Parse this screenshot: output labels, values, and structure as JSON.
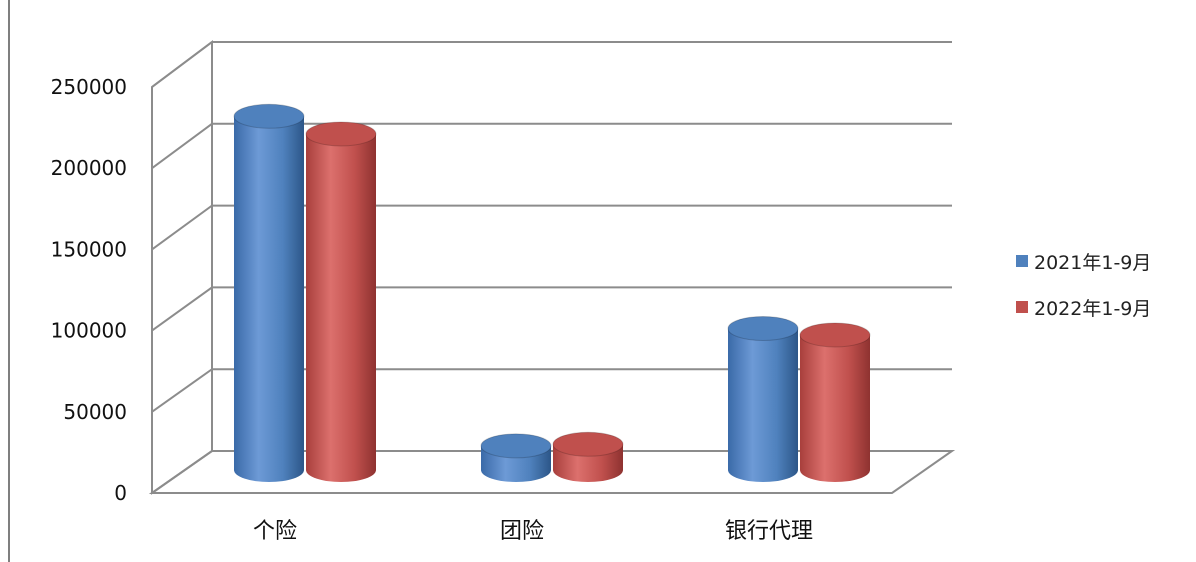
{
  "chart_data": {
    "type": "bar",
    "subtype": "3d-cylinder",
    "title": "",
    "categories": [
      "个险",
      "团险",
      "银行代理"
    ],
    "series": [
      {
        "name": "2021年1-9月",
        "color": "#4f81bd",
        "values": [
          220000,
          15000,
          88000
        ]
      },
      {
        "name": "2022年1-9月",
        "color": "#c0504d",
        "values": [
          209000,
          16000,
          84000
        ]
      }
    ],
    "ylim": [
      0,
      250000
    ],
    "yticks": [
      "0",
      "50000",
      "100000",
      "150000",
      "200000",
      "250000"
    ],
    "grid": true,
    "legend_position": "right"
  }
}
